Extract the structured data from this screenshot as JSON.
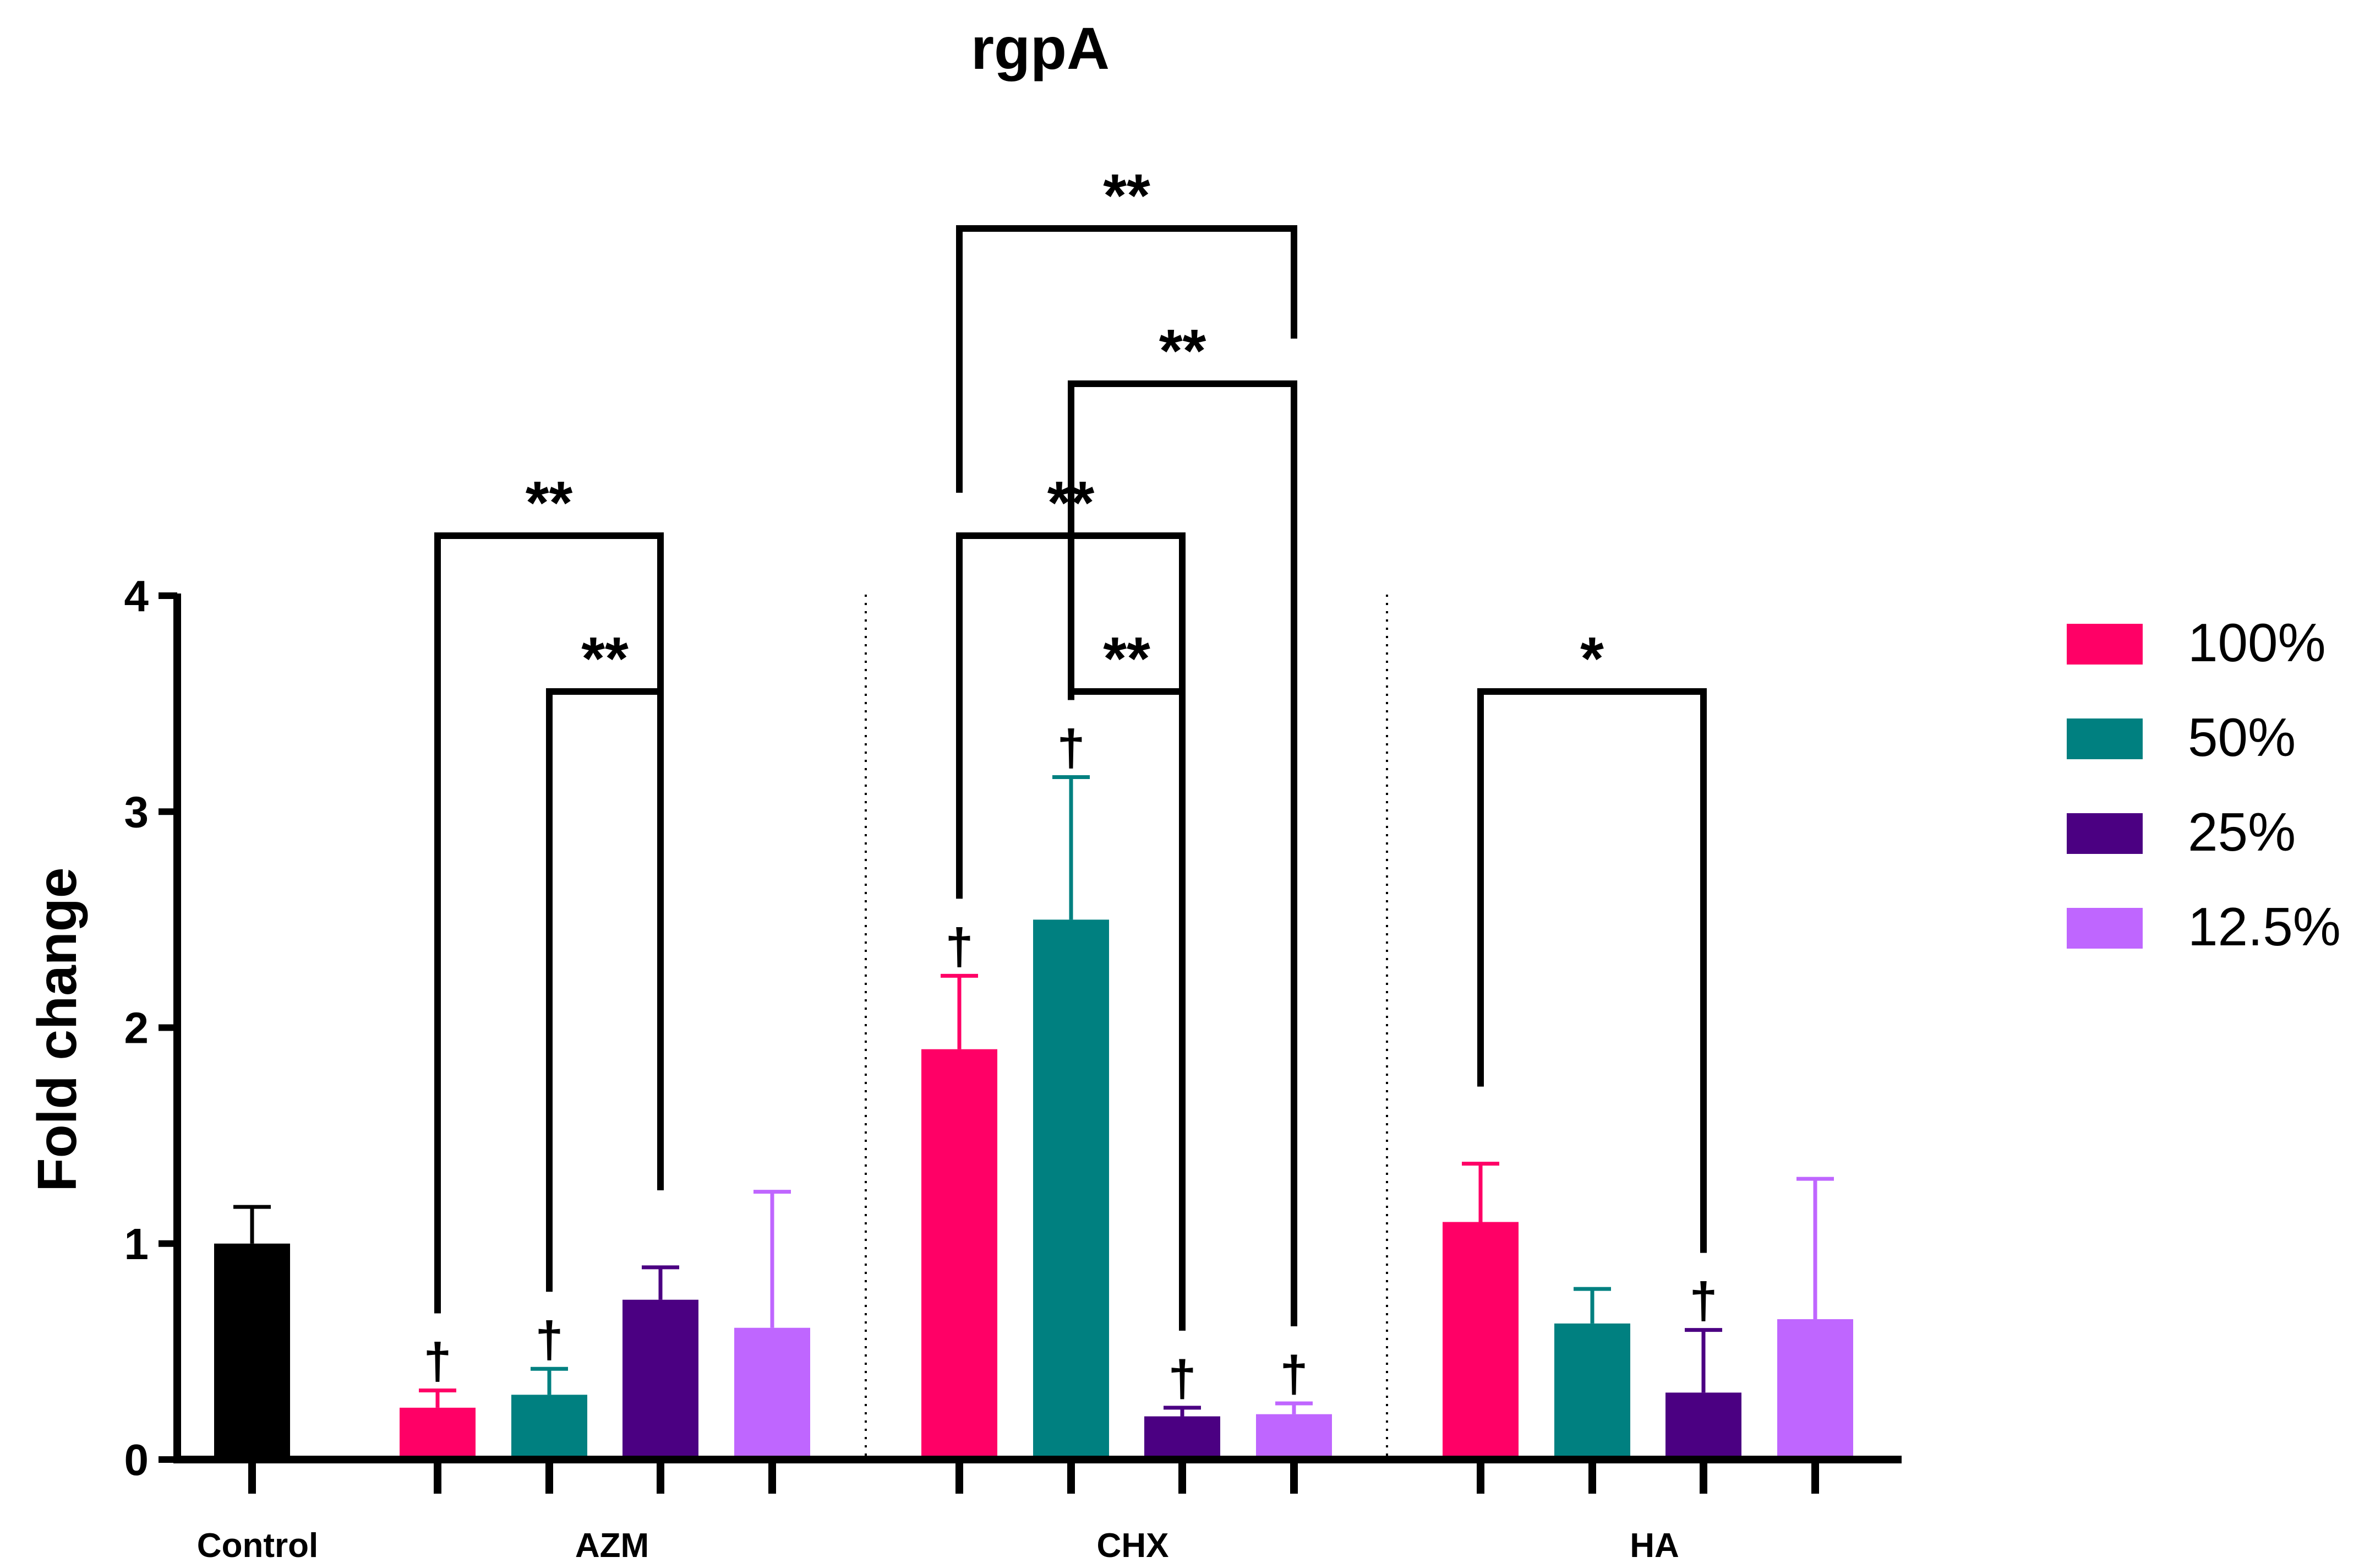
{
  "chart_data": {
    "type": "bar",
    "title": "rgpA",
    "ylabel": "Fold change",
    "xlabel": "",
    "ylim": [
      0,
      4
    ],
    "yticks": [
      0,
      1,
      2,
      3,
      4
    ],
    "grid": false,
    "legend_position": "right",
    "groups": [
      "Control",
      "AZM",
      "CHX",
      "HA"
    ],
    "series": [
      {
        "name": "100%",
        "color": "#FF0066"
      },
      {
        "name": "50%",
        "color": "#008080"
      },
      {
        "name": "25%",
        "color": "#4B0082"
      },
      {
        "name": "12.5%",
        "color": "#BF66FF"
      }
    ],
    "bars": [
      {
        "group": "Control",
        "series": "Control",
        "color": "#000000",
        "value": 1.0,
        "error": 0.17,
        "dagger": false
      },
      {
        "group": "AZM",
        "series": "100%",
        "value": 0.24,
        "error": 0.08,
        "dagger": true
      },
      {
        "group": "AZM",
        "series": "50%",
        "value": 0.3,
        "error": 0.12,
        "dagger": true
      },
      {
        "group": "AZM",
        "series": "25%",
        "value": 0.74,
        "error": 0.15,
        "dagger": false
      },
      {
        "group": "AZM",
        "series": "12.5%",
        "value": 0.61,
        "error": 0.63,
        "dagger": false
      },
      {
        "group": "CHX",
        "series": "100%",
        "value": 1.9,
        "error": 0.34,
        "dagger": true
      },
      {
        "group": "CHX",
        "series": "50%",
        "value": 2.5,
        "error": 0.66,
        "dagger": true
      },
      {
        "group": "CHX",
        "series": "25%",
        "value": 0.2,
        "error": 0.04,
        "dagger": true
      },
      {
        "group": "CHX",
        "series": "12.5%",
        "value": 0.21,
        "error": 0.05,
        "dagger": true
      },
      {
        "group": "HA",
        "series": "100%",
        "value": 1.1,
        "error": 0.27,
        "dagger": false
      },
      {
        "group": "HA",
        "series": "50%",
        "value": 0.63,
        "error": 0.16,
        "dagger": false
      },
      {
        "group": "HA",
        "series": "25%",
        "value": 0.31,
        "error": 0.29,
        "dagger": true
      },
      {
        "group": "HA",
        "series": "12.5%",
        "value": 0.65,
        "error": 0.65,
        "dagger": false
      }
    ],
    "dagger_symbol": "†",
    "significance": [
      {
        "group": "AZM",
        "from": "100%",
        "to": "25%",
        "label": "**"
      },
      {
        "group": "AZM",
        "from": "50%",
        "to": "25%",
        "label": "**"
      },
      {
        "group": "CHX",
        "from": "100%",
        "to": "12.5%",
        "label": "**"
      },
      {
        "group": "CHX",
        "from": "50%",
        "to": "12.5%",
        "label": "**"
      },
      {
        "group": "CHX",
        "from": "100%",
        "to": "25%",
        "label": "**"
      },
      {
        "group": "CHX",
        "from": "50%",
        "to": "25%",
        "label": "**"
      },
      {
        "group": "HA",
        "from": "100%",
        "to": "25%",
        "label": "*"
      }
    ]
  }
}
